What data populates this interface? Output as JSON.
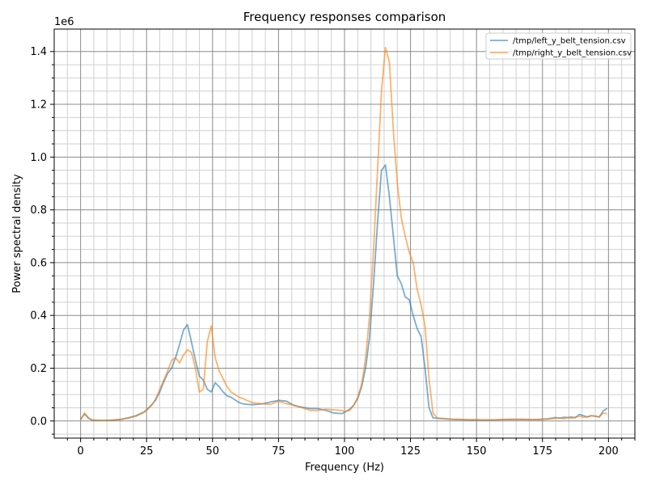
{
  "chart_data": {
    "type": "line",
    "title": "Frequency responses comparison",
    "xlabel": "Frequency (Hz)",
    "ylabel": "Power spectral density",
    "y_offset_label": "1e6",
    "xlim": [
      -10,
      210
    ],
    "ylim": [
      -0.065,
      1.485
    ],
    "xticks": [
      0,
      25,
      50,
      75,
      100,
      125,
      150,
      175,
      200
    ],
    "xtick_labels": [
      "0",
      "25",
      "50",
      "75",
      "100",
      "125",
      "150",
      "175",
      "200"
    ],
    "yticks": [
      0.0,
      0.2,
      0.4,
      0.6,
      0.8,
      1.0,
      1.2,
      1.4
    ],
    "ytick_labels": [
      "0.0",
      "0.2",
      "0.4",
      "0.6",
      "0.8",
      "1.0",
      "1.2",
      "1.4"
    ],
    "grid": true,
    "minor_grid": true,
    "legend_position": "top-right",
    "series": [
      {
        "name": "/tmp/left_y_belt_tension.csv",
        "color": "#1f77b4",
        "x": [
          0,
          1.5,
          3,
          4.5,
          6,
          9,
          12,
          15,
          18,
          21,
          24,
          25.5,
          27,
          28.5,
          30,
          31.5,
          33,
          34.5,
          36,
          37.5,
          39,
          40.5,
          42,
          43.5,
          45,
          46.5,
          48,
          49.5,
          51,
          52.5,
          54,
          55.5,
          57,
          58.5,
          60,
          61.5,
          63,
          64.5,
          66,
          69,
          72,
          75,
          78,
          81,
          84,
          87,
          90,
          93,
          96,
          99,
          100,
          102,
          103.5,
          105,
          106.5,
          108,
          109.5,
          111,
          112.5,
          114,
          115.5,
          117,
          118.5,
          120,
          121.5,
          123,
          124.5,
          126,
          127.5,
          129,
          130.5,
          132,
          133.5,
          135,
          138,
          141,
          144,
          147,
          150,
          153,
          156,
          159,
          162,
          165,
          168,
          171,
          174,
          177,
          180,
          181.5,
          183,
          184.5,
          186,
          187.5,
          189,
          190.5,
          192,
          193.5,
          195,
          196.5,
          198,
          199.5
        ],
        "values": [
          0.005,
          0.027,
          0.01,
          0.003,
          0.002,
          0.002,
          0.003,
          0.006,
          0.012,
          0.02,
          0.034,
          0.047,
          0.062,
          0.08,
          0.11,
          0.148,
          0.18,
          0.2,
          0.24,
          0.29,
          0.345,
          0.365,
          0.3,
          0.23,
          0.17,
          0.155,
          0.12,
          0.11,
          0.145,
          0.13,
          0.11,
          0.095,
          0.09,
          0.08,
          0.07,
          0.065,
          0.063,
          0.062,
          0.062,
          0.065,
          0.072,
          0.078,
          0.075,
          0.058,
          0.052,
          0.047,
          0.047,
          0.04,
          0.03,
          0.028,
          0.033,
          0.045,
          0.06,
          0.085,
          0.13,
          0.2,
          0.32,
          0.52,
          0.75,
          0.95,
          0.97,
          0.85,
          0.7,
          0.55,
          0.52,
          0.47,
          0.46,
          0.4,
          0.35,
          0.32,
          0.2,
          0.05,
          0.012,
          0.01,
          0.008,
          0.006,
          0.005,
          0.004,
          0.004,
          0.004,
          0.004,
          0.005,
          0.006,
          0.006,
          0.006,
          0.005,
          0.006,
          0.008,
          0.013,
          0.01,
          0.014,
          0.013,
          0.015,
          0.012,
          0.025,
          0.02,
          0.015,
          0.02,
          0.018,
          0.015,
          0.038,
          0.048
        ]
      },
      {
        "name": "/tmp/right_y_belt_tension.csv",
        "color": "#ff7f0e",
        "x": [
          0,
          1.5,
          3,
          4.5,
          6,
          9,
          12,
          15,
          18,
          21,
          24,
          25.5,
          27,
          28.5,
          30,
          31.5,
          33,
          34.5,
          36,
          37.5,
          39,
          40.5,
          42,
          43.5,
          45,
          46.5,
          48,
          49.5,
          51,
          52.5,
          54,
          55.5,
          57,
          58.5,
          60,
          61.5,
          63,
          64.5,
          66,
          69,
          72,
          75,
          78,
          81,
          84,
          87,
          90,
          93,
          96,
          99,
          100,
          102,
          103.5,
          105,
          106.5,
          108,
          109.5,
          111,
          112.5,
          114,
          115.5,
          117,
          118.5,
          120,
          121.5,
          123,
          124.5,
          126,
          127.5,
          129,
          130.5,
          132,
          133.5,
          135,
          138,
          141,
          144,
          147,
          150,
          153,
          156,
          159,
          162,
          165,
          168,
          171,
          174,
          177,
          180,
          181.5,
          183,
          184.5,
          186,
          187.5,
          189,
          190.5,
          192,
          193.5,
          195,
          196.5,
          198,
          199.5
        ],
        "values": [
          0.005,
          0.03,
          0.012,
          0.004,
          0.003,
          0.002,
          0.003,
          0.005,
          0.01,
          0.018,
          0.032,
          0.045,
          0.06,
          0.085,
          0.12,
          0.155,
          0.19,
          0.23,
          0.24,
          0.22,
          0.25,
          0.27,
          0.26,
          0.2,
          0.11,
          0.12,
          0.3,
          0.36,
          0.24,
          0.19,
          0.16,
          0.13,
          0.11,
          0.1,
          0.09,
          0.085,
          0.078,
          0.072,
          0.068,
          0.065,
          0.063,
          0.075,
          0.065,
          0.06,
          0.05,
          0.04,
          0.04,
          0.045,
          0.042,
          0.04,
          0.035,
          0.04,
          0.06,
          0.09,
          0.14,
          0.24,
          0.4,
          0.65,
          0.95,
          1.25,
          1.415,
          1.36,
          1.1,
          0.9,
          0.77,
          0.7,
          0.64,
          0.6,
          0.5,
          0.44,
          0.36,
          0.16,
          0.03,
          0.012,
          0.009,
          0.007,
          0.006,
          0.005,
          0.005,
          0.004,
          0.004,
          0.005,
          0.006,
          0.006,
          0.006,
          0.005,
          0.006,
          0.007,
          0.01,
          0.012,
          0.008,
          0.012,
          0.01,
          0.015,
          0.018,
          0.014,
          0.016,
          0.02,
          0.018,
          0.015,
          0.03,
          0.028
        ]
      }
    ]
  }
}
